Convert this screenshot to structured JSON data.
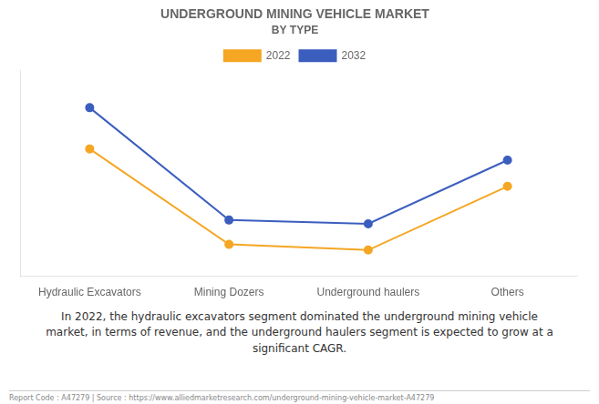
{
  "chart_data": {
    "type": "line",
    "title": "UNDERGROUND MINING VEHICLE MARKET",
    "subtitle": "BY TYPE",
    "categories": [
      "Hydraulic Excavators",
      "Mining Dozers",
      "Underground haulers",
      "Others"
    ],
    "series": [
      {
        "name": "2022",
        "color": "#F5A623",
        "values": [
          0.68,
          0.17,
          0.14,
          0.48
        ]
      },
      {
        "name": "2032",
        "color": "#3B5EBE",
        "values": [
          0.9,
          0.3,
          0.28,
          0.62
        ]
      }
    ],
    "ylim": [
      0.0,
      1.1
    ],
    "grid": false,
    "legend": "top",
    "tick_labels": "x",
    "marker": "circle",
    "annotation": "In 2022, the hydraulic excavators segment dominated the underground mining vehicle\nmarket, in terms of revenue, and the underground haulers segment is expected to grow at a\nsignificant CAGR.",
    "footer": "Report Code : A47279  |  Source : https://www.alliedmarketresearch.com/underground-mining-vehicle-market-A47279"
  }
}
